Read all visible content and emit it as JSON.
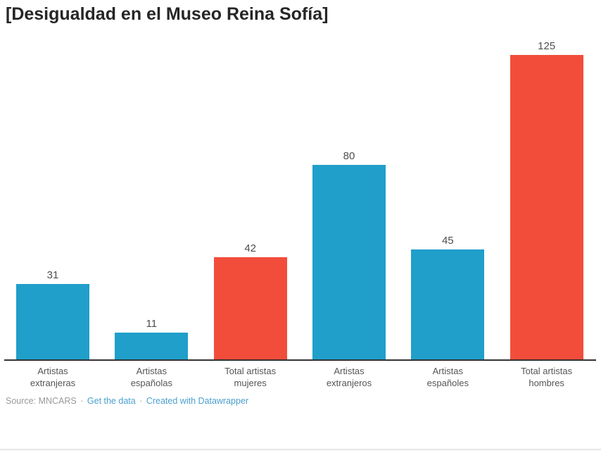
{
  "chart_data": {
    "type": "bar",
    "title": "[Desigualdad en el Museo Reina Sofía]",
    "categories": [
      "Artistas extranjeras",
      "Artistas españolas",
      "Total artistas mujeres",
      "Artistas extranjeros",
      "Artistas españoles",
      "Total artistas hombres"
    ],
    "category_lines": [
      [
        "Artistas",
        "extranjeras"
      ],
      [
        "Artistas",
        "españolas"
      ],
      [
        "Total artistas",
        "mujeres"
      ],
      [
        "Artistas",
        "extranjeros"
      ],
      [
        "Artistas",
        "españoles"
      ],
      [
        "Total artistas",
        "hombres"
      ]
    ],
    "values": [
      31,
      11,
      42,
      80,
      45,
      125
    ],
    "bar_colors": [
      "#209fca",
      "#209fca",
      "#f24d3b",
      "#209fca",
      "#209fca",
      "#f24d3b"
    ],
    "ylim": [
      0,
      125
    ],
    "grid": false,
    "value_labels_shown": true,
    "xlabel": "",
    "ylabel": ""
  },
  "footer": {
    "source_label": "Source:",
    "source_value": "MNCARS",
    "separator": "·",
    "link_get_data": "Get the data",
    "link_created_with": "Created with Datawrapper"
  },
  "colors": {
    "bar_blue": "#209fca",
    "bar_red": "#f24d3b",
    "axis_line": "#333333",
    "title_text": "#262626",
    "category_text": "#555555",
    "value_text": "#4d4d4d",
    "footer_text": "#999999",
    "link_text": "#4a9fce",
    "bottom_border": "#dcdcdc"
  }
}
